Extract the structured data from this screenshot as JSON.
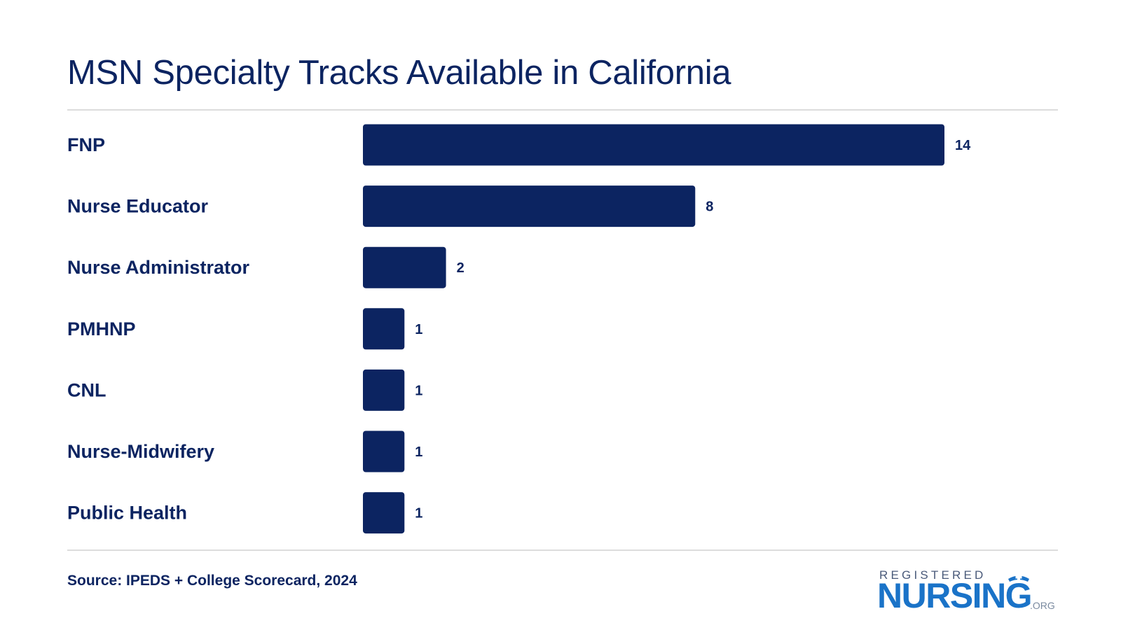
{
  "chart_data": {
    "type": "bar",
    "orientation": "horizontal",
    "title": "MSN Specialty Tracks Available in California",
    "categories": [
      "FNP",
      "Nurse Educator",
      "Nurse Administrator",
      "PMHNP",
      "CNL",
      "Nurse-Midwifery",
      "Public Health"
    ],
    "values": [
      14,
      8,
      2,
      1,
      1,
      1,
      1
    ],
    "data_labels": [
      "14",
      "8",
      "2",
      "1",
      "1",
      "1",
      "1"
    ],
    "xlabel": "",
    "ylabel": "",
    "xlim": [
      0,
      14
    ],
    "grid": false,
    "legend": "none",
    "bar_color": "#0c2461"
  },
  "source": "Source: IPEDS + College Scorecard, 2024",
  "logo": {
    "top_text": "REGISTERED",
    "main_text": "NURSING",
    "suffix": ".ORG",
    "icon": "nurse-cap-icon",
    "main_color": "#1a73c8"
  },
  "colors": {
    "text": "#0c2461",
    "rule": "#dcdcdc"
  }
}
